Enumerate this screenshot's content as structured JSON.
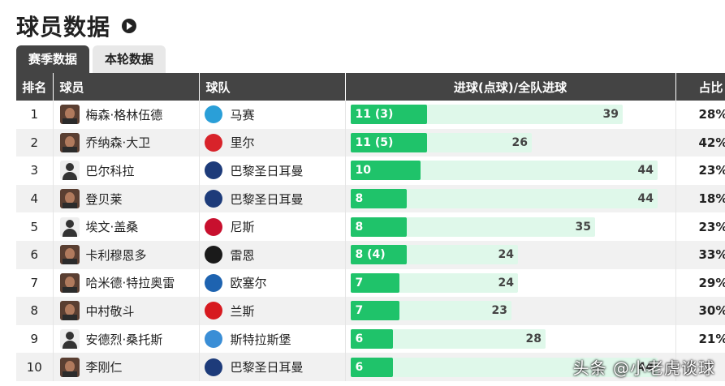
{
  "title": "球员数据",
  "tabs": [
    "赛季数据",
    "本轮数据"
  ],
  "columns": [
    "排名",
    "球员",
    "球队",
    "进球(点球)/全队进球",
    "占比"
  ],
  "rows": [
    {
      "rank": "1",
      "player": "梅森·格林伍德",
      "team": "马赛",
      "goals": 11,
      "goals_label": "11 (3)",
      "team_goals": 39,
      "pct": "28%",
      "crest_color": "#2a9fd8",
      "crest_icon": "marseille-crest",
      "avatar": "photo"
    },
    {
      "rank": "2",
      "player": "乔纳森·大卫",
      "team": "里尔",
      "goals": 11,
      "goals_label": "11 (5)",
      "team_goals": 26,
      "pct": "42%",
      "crest_color": "#d8232a",
      "crest_icon": "lille-crest",
      "avatar": "photo"
    },
    {
      "rank": "3",
      "player": "巴尔科拉",
      "team": "巴黎圣日耳曼",
      "goals": 10,
      "goals_label": "10",
      "team_goals": 44,
      "pct": "23%",
      "crest_color": "#1d3b7a",
      "crest_icon": "psg-crest",
      "avatar": "silhouette"
    },
    {
      "rank": "4",
      "player": "登贝莱",
      "team": "巴黎圣日耳曼",
      "goals": 8,
      "goals_label": "8",
      "team_goals": 44,
      "pct": "18%",
      "crest_color": "#1d3b7a",
      "crest_icon": "psg-crest",
      "avatar": "photo"
    },
    {
      "rank": "5",
      "player": "埃文·盖桑",
      "team": "尼斯",
      "goals": 8,
      "goals_label": "8",
      "team_goals": 35,
      "pct": "23%",
      "crest_color": "#c8102e",
      "crest_icon": "nice-crest",
      "avatar": "silhouette"
    },
    {
      "rank": "6",
      "player": "卡利穆恩多",
      "team": "雷恩",
      "goals": 8,
      "goals_label": "8 (4)",
      "team_goals": 24,
      "pct": "33%",
      "crest_color": "#1a1a1a",
      "crest_icon": "rennes-crest",
      "avatar": "photo"
    },
    {
      "rank": "7",
      "player": "哈米德·特拉奥雷",
      "team": "欧塞尔",
      "goals": 7,
      "goals_label": "7",
      "team_goals": 24,
      "pct": "29%",
      "crest_color": "#1e63b0",
      "crest_icon": "auxerre-crest",
      "avatar": "photo"
    },
    {
      "rank": "8",
      "player": "中村敬斗",
      "team": "兰斯",
      "goals": 7,
      "goals_label": "7",
      "team_goals": 23,
      "pct": "30%",
      "crest_color": "#d71a20",
      "crest_icon": "reims-crest",
      "avatar": "photo"
    },
    {
      "rank": "9",
      "player": "安德烈·桑托斯",
      "team": "斯特拉斯堡",
      "goals": 6,
      "goals_label": "6",
      "team_goals": 28,
      "pct": "21%",
      "crest_color": "#3a8ed6",
      "crest_icon": "strasbourg-crest",
      "avatar": "silhouette"
    },
    {
      "rank": "10",
      "player": "李刚仁",
      "team": "巴黎圣日耳曼",
      "goals": 6,
      "goals_label": "6",
      "team_goals": 44,
      "pct": "",
      "crest_color": "#1d3b7a",
      "crest_icon": "psg-crest",
      "avatar": "photo"
    }
  ],
  "bar_max": 46,
  "watermark": "头条 @小老虎谈球"
}
